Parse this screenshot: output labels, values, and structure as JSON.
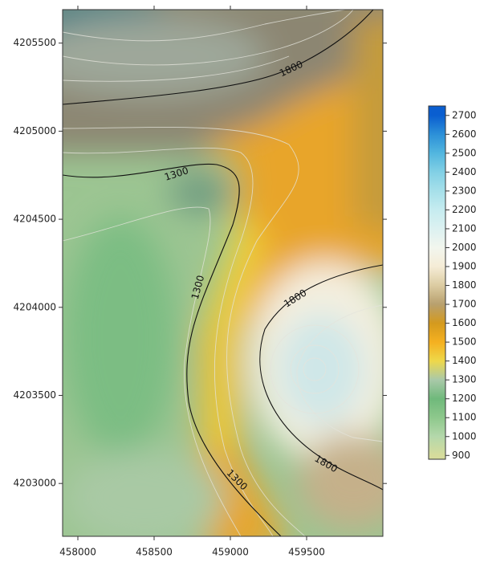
{
  "chart_data": {
    "type": "contour",
    "xlim": [
      457900,
      460000
    ],
    "xticks": [
      458000,
      458500,
      459000,
      459500
    ],
    "ylim": [
      4202700,
      4205690
    ],
    "yticks": [
      4203000,
      4203500,
      4204000,
      4204500,
      4205000,
      4205500
    ],
    "colorbar": {
      "lim": [
        880,
        2750
      ],
      "ticks": [
        900,
        1000,
        1100,
        1200,
        1300,
        1400,
        1500,
        1600,
        1700,
        1800,
        1900,
        2000,
        2100,
        2200,
        2300,
        2400,
        2500,
        2600,
        2700
      ],
      "colors": [
        "#d6dc9c",
        "#b4d8ab",
        "#8ec88c",
        "#6fb97b",
        "#a9c9a9",
        "#eed84a",
        "#f5b020",
        "#d49a1e",
        "#b8a06e",
        "#dccca2",
        "#f5ecd6",
        "#f2f6ee",
        "#dcf1f1",
        "#c6ecf0",
        "#a6e0ea",
        "#82d0e5",
        "#52b6df",
        "#2c90d8",
        "#0a5ed0"
      ]
    },
    "contour_labels": [
      1800,
      1300,
      1300,
      1800,
      1800,
      1300
    ]
  }
}
